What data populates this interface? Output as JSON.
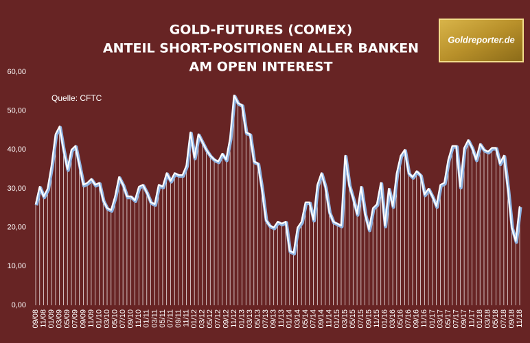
{
  "chart_data": {
    "type": "line",
    "title": [
      "GOLD-FUTURES (COMEX)",
      "ANTEIL SHORT-POSITIONEN ALLER BANKEN",
      "AM OPEN INTEREST"
    ],
    "source": "Quelle: CFTC",
    "logo": "Goldreporter.de",
    "categories": [
      "09/08",
      null,
      "11/08",
      null,
      "01/09",
      null,
      "03/09",
      null,
      "05/09",
      null,
      "07/09",
      null,
      "09/09",
      null,
      "11/09",
      null,
      "01/10",
      null,
      "03/10",
      null,
      "05/10",
      null,
      "07/10",
      null,
      "09/10",
      null,
      "11/10",
      null,
      "01/11",
      null,
      "03/11",
      null,
      "05/11",
      null,
      "07/11",
      null,
      "09/11",
      null,
      "11/11",
      null,
      "01/12",
      null,
      "03/12",
      null,
      "05/12",
      null,
      "07/12",
      null,
      "09/12",
      null,
      "11/12",
      null,
      "01/13",
      null,
      "03/13",
      null,
      "05/13",
      null,
      "07/13",
      null,
      "09/13",
      null,
      "11/13",
      null,
      "01/14",
      null,
      "03/14",
      null,
      "05/14",
      null,
      "07/14",
      null,
      "09/14",
      null,
      "11/14",
      null,
      "01/15",
      null,
      "03/15",
      null,
      "05/15",
      null,
      "07/15",
      null,
      "09/15",
      null,
      "11/15",
      null,
      "01/16",
      null,
      "03/16",
      null,
      "05/16",
      null,
      "07/16",
      null,
      "09/16",
      null,
      "11/16",
      null,
      "01/17",
      null,
      "03/17",
      null,
      "05/17",
      null,
      "07/17",
      null,
      "09/17",
      null,
      "11/17",
      null,
      "01/18",
      null,
      "03/18",
      null,
      "05/18",
      null,
      "07/18",
      null,
      "09/18",
      null,
      "11/18"
    ],
    "values": [
      26,
      30.5,
      28,
      30,
      36,
      44,
      46,
      40,
      35,
      40,
      41,
      36,
      31,
      31.5,
      32.5,
      31,
      31.5,
      27,
      25,
      24.5,
      28,
      33,
      31,
      28,
      28,
      27,
      30.5,
      31,
      29,
      26.5,
      26,
      31,
      30.5,
      34,
      32,
      34,
      33.5,
      33.5,
      36,
      44.5,
      38,
      44,
      42,
      40,
      38.5,
      37.5,
      37,
      39,
      37.5,
      43,
      54,
      52,
      51.5,
      44.5,
      44,
      37,
      36.5,
      30,
      22,
      20.5,
      20,
      21.5,
      21,
      21.5,
      14,
      13.5,
      20,
      21.5,
      26.5,
      26.5,
      22,
      31,
      34,
      30.5,
      24,
      21.5,
      21,
      20.5,
      38.5,
      31,
      27.5,
      23.5,
      30.5,
      23.5,
      19.5,
      25,
      26,
      31.5,
      20.5,
      30,
      25.5,
      34,
      38.5,
      40,
      34,
      33,
      34.5,
      33.5,
      28.5,
      30,
      28,
      25.5,
      31,
      31.5,
      37.5,
      41,
      41,
      30.5,
      40.5,
      42.5,
      40.5,
      37.5,
      41.5,
      40,
      39.5,
      40.5,
      40.5,
      36.5,
      38.5,
      30,
      20,
      16.5,
      25.5
    ],
    "color": "#ffffff",
    "shadow_color": "#8fb4e3",
    "background": "#672424",
    "ylim": [
      0,
      60
    ],
    "yticks": [
      {
        "value": 0,
        "label": "0,00"
      },
      {
        "value": 10,
        "label": "10,00"
      },
      {
        "value": 20,
        "label": "20,00"
      },
      {
        "value": 30,
        "label": "30,00"
      },
      {
        "value": 40,
        "label": "40,00"
      },
      {
        "value": 50,
        "label": "50,00"
      },
      {
        "value": 60,
        "label": "60,00"
      }
    ],
    "grid": false,
    "drop_lines": true
  }
}
